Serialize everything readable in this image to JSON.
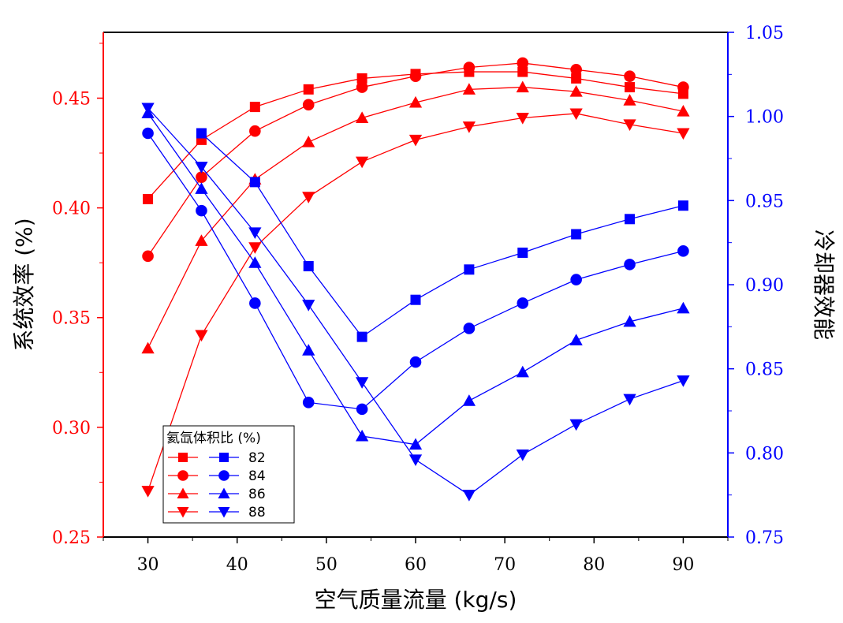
{
  "chart_data": {
    "type": "line",
    "x": [
      30,
      36,
      42,
      48,
      54,
      60,
      66,
      72,
      78,
      84,
      90
    ],
    "xlabel": "空气质量流量 (kg/s)",
    "xlim": [
      25,
      95
    ],
    "xticks": [
      30,
      40,
      50,
      60,
      70,
      80,
      90
    ],
    "y_left": {
      "label": "系统效率 (%)",
      "lim": [
        0.25,
        0.48
      ],
      "ticks": [
        "0.25",
        "0.30",
        "0.35",
        "0.40",
        "0.45"
      ],
      "color": "#ff0000"
    },
    "y_right": {
      "label": "冷却器效能",
      "lim": [
        0.75,
        1.05
      ],
      "ticks": [
        "0.75",
        "0.80",
        "0.85",
        "0.90",
        "0.95",
        "1.00",
        "1.05"
      ],
      "color": "#0000ff"
    },
    "legend": {
      "title": "氦氙体积比 (%)",
      "entries": [
        "82",
        "84",
        "86",
        "88"
      ],
      "placement": "bottom-left"
    },
    "series": [
      {
        "name": "82",
        "axis": "left",
        "color": "#ff0000",
        "marker": "square",
        "values": [
          0.404,
          0.431,
          0.446,
          0.454,
          0.459,
          0.461,
          0.462,
          0.462,
          0.459,
          0.455,
          0.452
        ]
      },
      {
        "name": "84",
        "axis": "left",
        "color": "#ff0000",
        "marker": "circle",
        "values": [
          0.378,
          0.414,
          0.435,
          0.447,
          0.455,
          0.46,
          0.464,
          0.466,
          0.463,
          0.46,
          0.455
        ]
      },
      {
        "name": "86",
        "axis": "left",
        "color": "#ff0000",
        "marker": "triangle-up",
        "values": [
          0.336,
          0.385,
          0.413,
          0.43,
          0.441,
          0.448,
          0.454,
          0.455,
          0.453,
          0.449,
          0.444
        ]
      },
      {
        "name": "88",
        "axis": "left",
        "color": "#ff0000",
        "marker": "triangle-down",
        "values": [
          0.271,
          0.342,
          0.382,
          0.405,
          0.421,
          0.431,
          0.437,
          0.441,
          0.443,
          0.438,
          0.434
        ]
      },
      {
        "name": "82",
        "axis": "right",
        "color": "#0000ff",
        "marker": "square",
        "values": [
          null,
          0.99,
          0.961,
          0.911,
          0.869,
          0.891,
          0.909,
          0.919,
          0.93,
          0.939,
          0.947
        ]
      },
      {
        "name": "84",
        "axis": "right",
        "color": "#0000ff",
        "marker": "circle",
        "values": [
          0.99,
          0.944,
          0.889,
          0.83,
          0.826,
          0.854,
          0.874,
          0.889,
          0.903,
          0.912,
          0.92
        ]
      },
      {
        "name": "86",
        "axis": "right",
        "color": "#0000ff",
        "marker": "triangle-up",
        "values": [
          1.002,
          0.957,
          0.913,
          0.861,
          0.81,
          0.805,
          0.831,
          0.848,
          0.867,
          0.878,
          0.886
        ]
      },
      {
        "name": "88",
        "axis": "right",
        "color": "#0000ff",
        "marker": "triangle-down",
        "values": [
          1.005,
          0.97,
          0.931,
          0.888,
          0.842,
          0.796,
          0.775,
          0.799,
          0.817,
          0.832,
          0.843
        ]
      }
    ]
  }
}
